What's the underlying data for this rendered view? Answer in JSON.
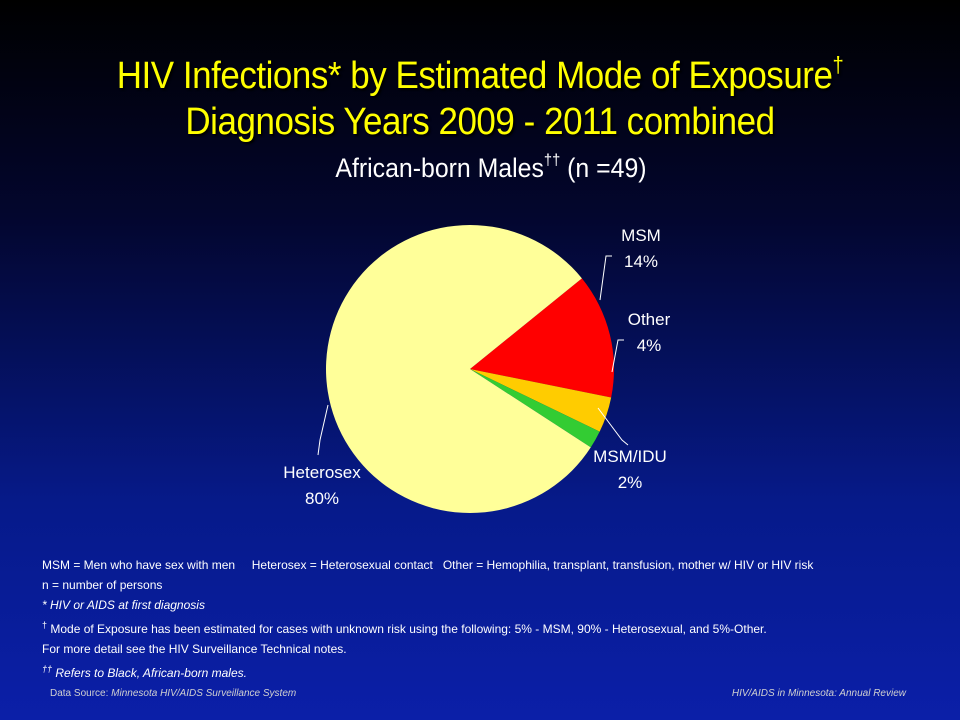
{
  "title": {
    "line1": "HIV Infections* by Estimated Mode of Exposure",
    "line1_sup": "†",
    "line2": "Diagnosis Years 2009 - 2011 combined"
  },
  "subtitle": {
    "text": "African-born Males",
    "sup": "††",
    "n": " (n =49)"
  },
  "chart_data": {
    "type": "pie",
    "title": "African-born Males†† (n =49)",
    "slices": [
      {
        "label": "MSM",
        "value": 14,
        "display": "14%",
        "color": "#ff0000"
      },
      {
        "label": "Other",
        "value": 4,
        "display": "4%",
        "color": "#ffcc00"
      },
      {
        "label": "MSM/IDU",
        "value": 2,
        "display": "2%",
        "color": "#33cc33"
      },
      {
        "label": "Heterosex",
        "value": 80,
        "display": "80%",
        "color": "#ffff99"
      }
    ]
  },
  "notes": {
    "definitions": "MSM = Men who have sex with men     Heterosex = Heterosexual contact   Other = Hemophilia, transplant, transfusion, mother w/ HIV or HIV risk",
    "n_def": "n = number of persons",
    "asterisk": "* HIV or AIDS at first diagnosis",
    "dagger_mark": "†",
    "dagger": " Mode of Exposure has been estimated for cases with unknown risk using the following: 5% - MSM, 90% - Heterosexual, and 5%-Other.",
    "more": "For more detail see the HIV Surveillance Technical notes.",
    "ddagger_mark": "††",
    "ddagger": " Refers to Black, African-born males."
  },
  "footer": {
    "source_label": "Data Source: ",
    "source": "Minnesota HIV/AIDS Surveillance  System",
    "right": "HIV/AIDS in Minnesota: Annual Review"
  }
}
